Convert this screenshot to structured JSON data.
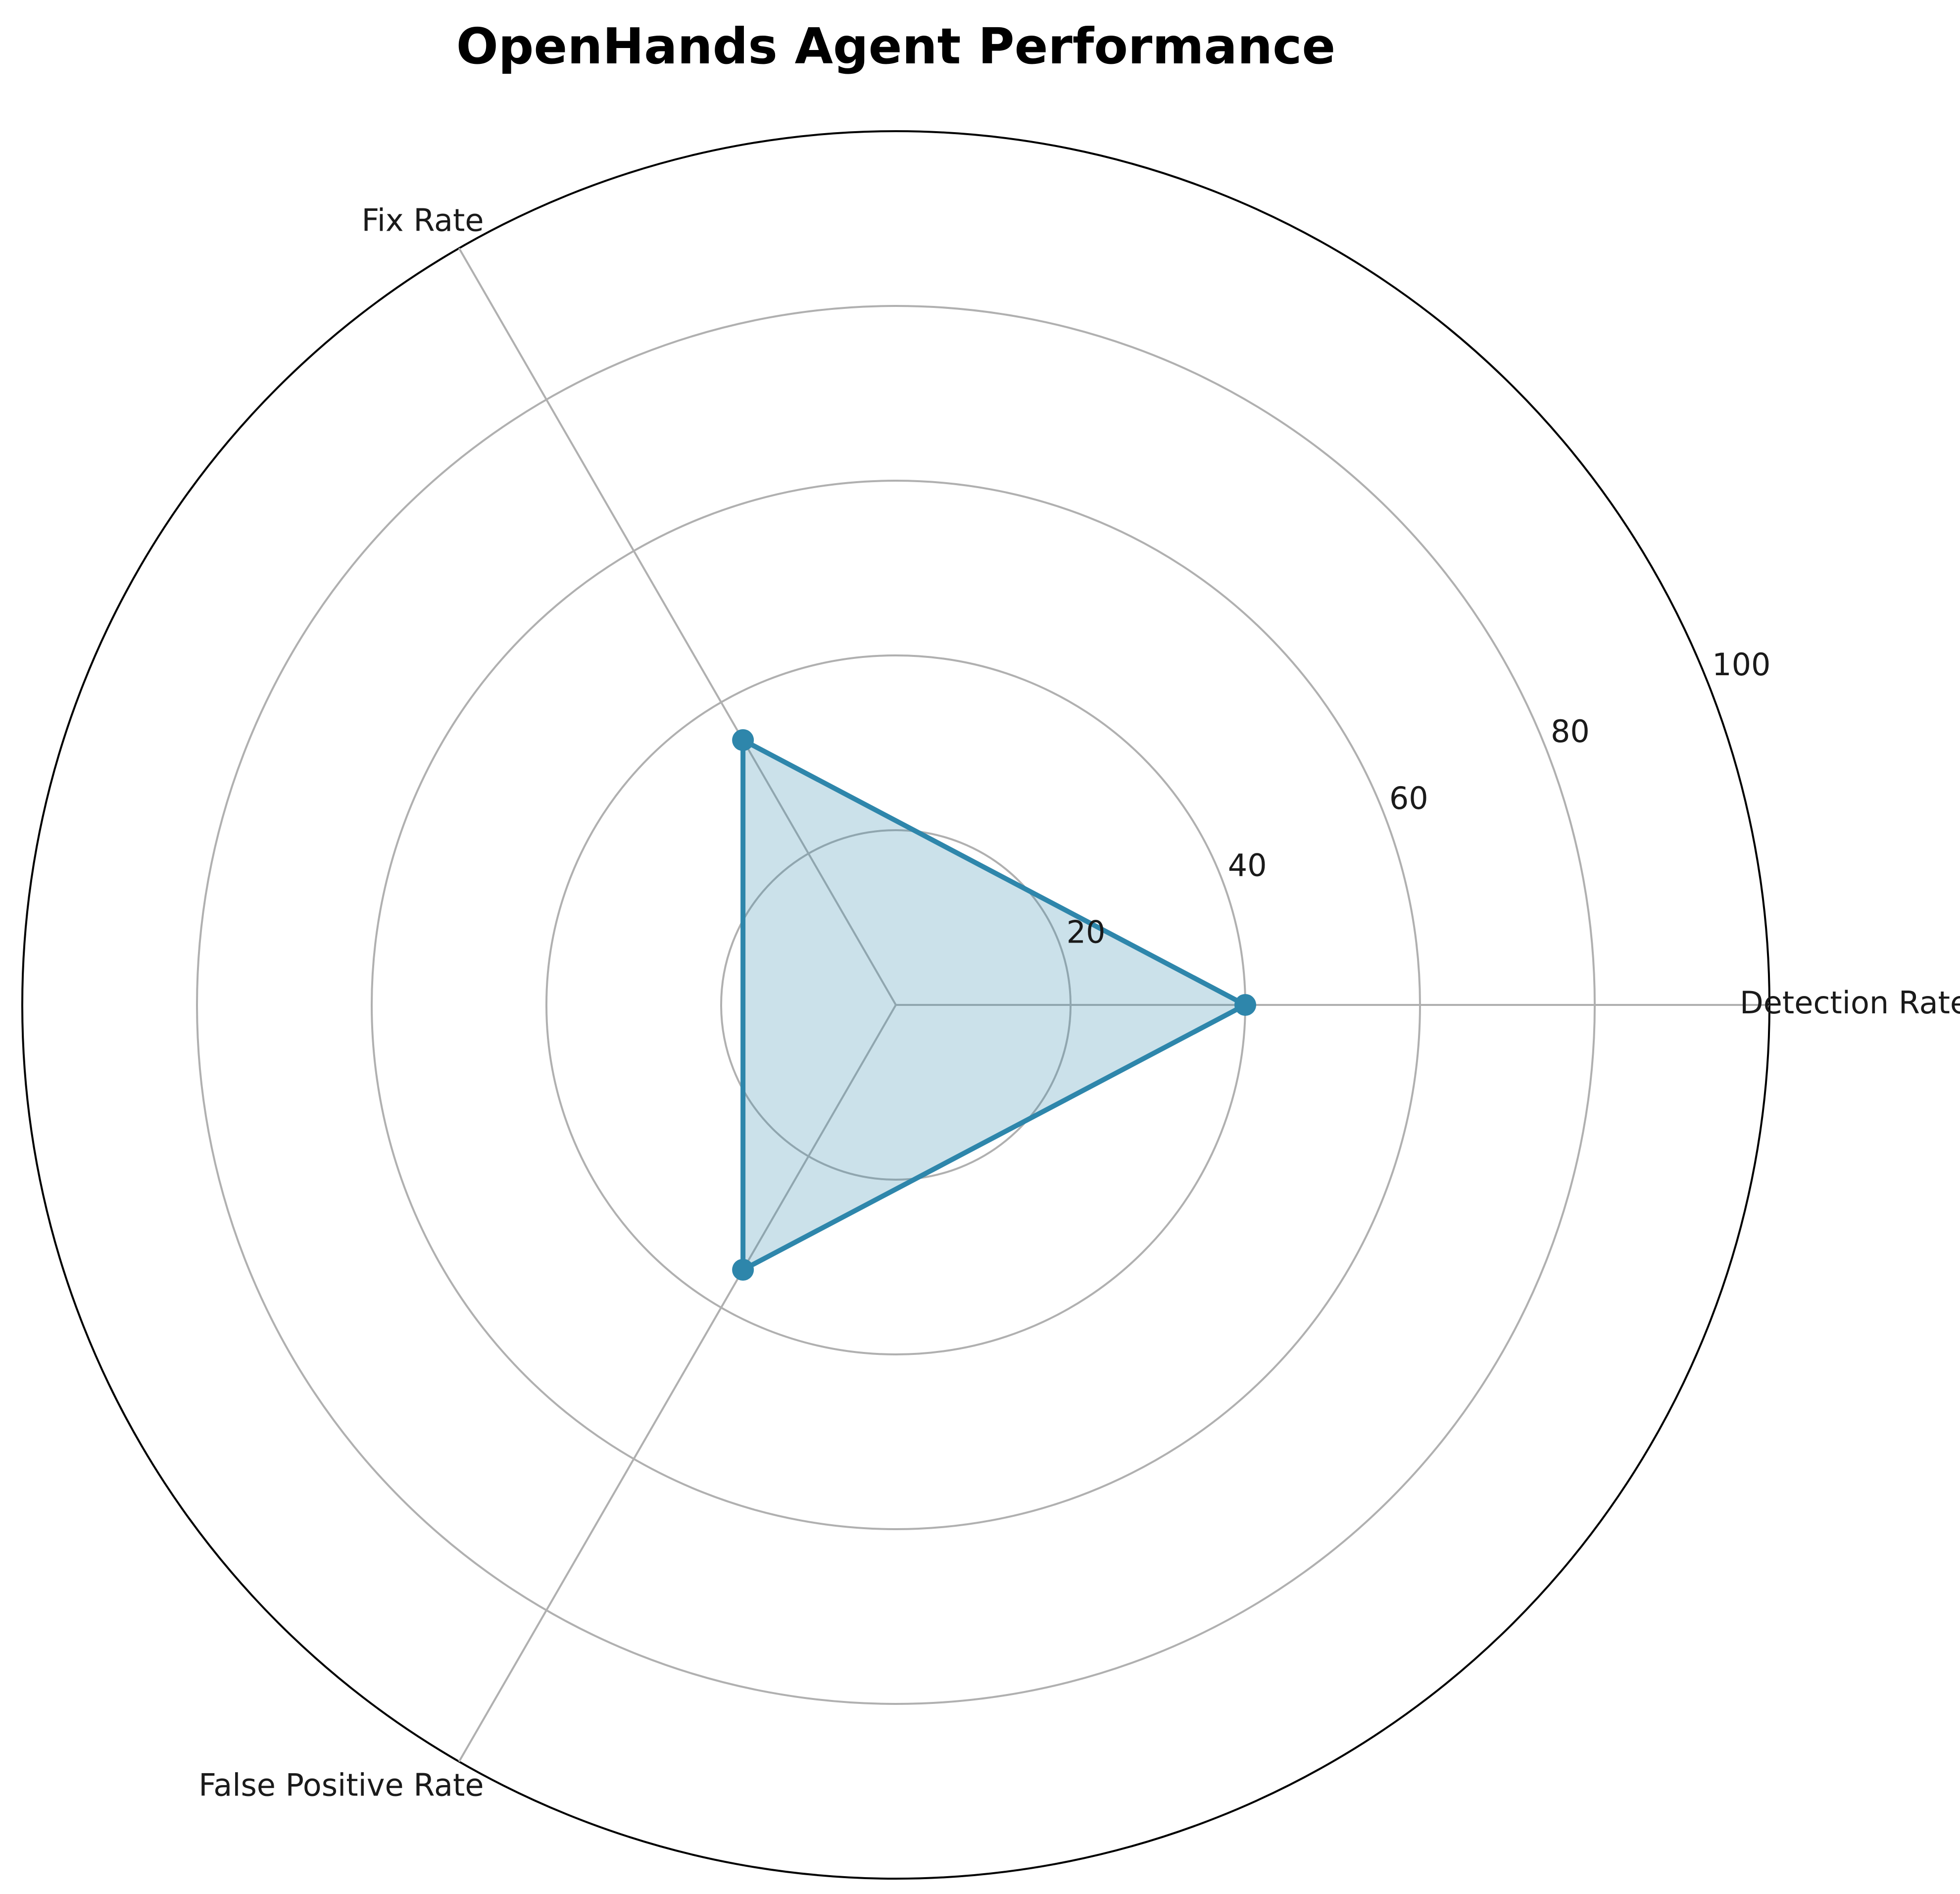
{
  "chart_data": {
    "type": "radar",
    "title": "OpenHands Agent Performance",
    "categories": [
      "Detection Rate",
      "Fix Rate",
      "False Positive Rate"
    ],
    "values": [
      40,
      35,
      35
    ],
    "rlim": [
      0,
      100
    ],
    "r_ticks": [
      20,
      40,
      60,
      80,
      100
    ],
    "r_tick_labels": [
      "20",
      "40",
      "60",
      "80",
      "100"
    ],
    "grid": true,
    "line_color": "#2e86ab",
    "fill_color": "#2e86ab",
    "fill_opacity": 0.25
  }
}
